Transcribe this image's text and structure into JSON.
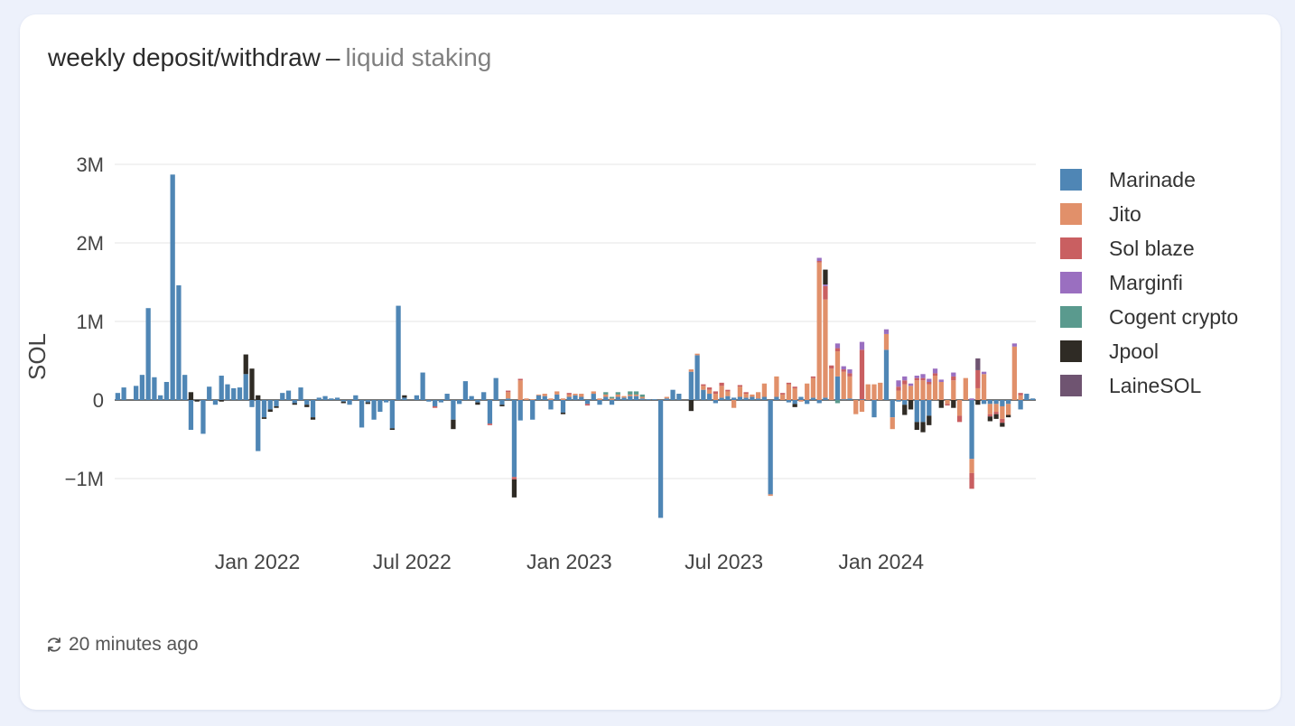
{
  "card": {
    "title": "weekly deposit/withdraw",
    "separator": "–",
    "subtitle": "liquid staking",
    "updated": "20 minutes ago"
  },
  "icons": {
    "refresh": "refresh-icon"
  },
  "chart_data": {
    "type": "bar",
    "stacked": true,
    "ylabel": "SOL",
    "ylim": [
      -1550000,
      3300000
    ],
    "yticks": [
      {
        "value": 3000000,
        "label": "3M"
      },
      {
        "value": 2000000,
        "label": "2M"
      },
      {
        "value": 1000000,
        "label": "1M"
      },
      {
        "value": 0,
        "label": "0"
      },
      {
        "value": -1000000,
        "label": "−1M"
      }
    ],
    "xlim": [
      "2021-07-18",
      "2024-06-30"
    ],
    "xticks": [
      {
        "date": "2022-01-01",
        "label": "Jan 2022"
      },
      {
        "date": "2022-07-01",
        "label": "Jul 2022"
      },
      {
        "date": "2023-01-01",
        "label": "Jan 2023"
      },
      {
        "date": "2023-07-01",
        "label": "Jul 2023"
      },
      {
        "date": "2024-01-01",
        "label": "Jan 2024"
      }
    ],
    "grid": true,
    "legend_position": "right",
    "series": [
      {
        "name": "Marinade",
        "color": "#4f86b5",
        "values": [
          90000,
          160000,
          0,
          180000,
          320000,
          1170000,
          290000,
          60000,
          230000,
          2870000,
          1460000,
          320000,
          -380000,
          0,
          -430000,
          170000,
          -60000,
          310000,
          200000,
          150000,
          160000,
          330000,
          -90000,
          -650000,
          -220000,
          -120000,
          -80000,
          90000,
          120000,
          -40000,
          160000,
          -60000,
          -220000,
          30000,
          50000,
          20000,
          30000,
          -20000,
          -60000,
          60000,
          -350000,
          -30000,
          -250000,
          -150000,
          -30000,
          -360000,
          1200000,
          30000,
          0,
          60000,
          350000,
          -20000,
          -80000,
          -30000,
          80000,
          -250000,
          -50000,
          240000,
          50000,
          -30000,
          100000,
          -300000,
          280000,
          -60000,
          20000,
          -980000,
          -260000,
          0,
          -250000,
          60000,
          50000,
          -120000,
          70000,
          -160000,
          40000,
          60000,
          40000,
          -50000,
          80000,
          -60000,
          40000,
          -60000,
          40000,
          30000,
          50000,
          50000,
          20000,
          10000,
          10000,
          -1500000,
          20000,
          130000,
          80000,
          0,
          360000,
          570000,
          130000,
          80000,
          -40000,
          30000,
          50000,
          30000,
          40000,
          30000,
          40000,
          20000,
          40000,
          -1200000,
          40000,
          0,
          -30000,
          -50000,
          40000,
          -50000,
          30000,
          -40000,
          30000,
          0,
          300000,
          10000,
          20000,
          0,
          10000,
          0,
          -220000,
          0,
          640000,
          -220000,
          -20000,
          -60000,
          0,
          -280000,
          -280000,
          -200000,
          0,
          0,
          0,
          0,
          0,
          0,
          -750000,
          0,
          -50000,
          -50000,
          -50000,
          -80000,
          -50000,
          0,
          -120000,
          80000,
          20000
        ]
      },
      {
        "name": "Jito",
        "color": "#e1906a",
        "values": [
          0,
          0,
          0,
          0,
          0,
          0,
          0,
          0,
          0,
          0,
          0,
          0,
          0,
          0,
          0,
          0,
          0,
          0,
          0,
          0,
          0,
          0,
          0,
          0,
          0,
          0,
          0,
          0,
          0,
          0,
          0,
          0,
          0,
          0,
          0,
          0,
          0,
          0,
          0,
          0,
          0,
          0,
          0,
          0,
          0,
          0,
          0,
          0,
          0,
          0,
          0,
          0,
          0,
          0,
          0,
          0,
          0,
          0,
          0,
          0,
          0,
          0,
          0,
          0,
          80000,
          0,
          250000,
          20000,
          10000,
          10000,
          30000,
          20000,
          40000,
          20000,
          30000,
          20000,
          40000,
          0,
          30000,
          20000,
          30000,
          20000,
          30000,
          20000,
          20000,
          20000,
          20000,
          0,
          0,
          0,
          20000,
          0,
          0,
          0,
          30000,
          20000,
          50000,
          50000,
          80000,
          150000,
          60000,
          -100000,
          130000,
          50000,
          30000,
          80000,
          170000,
          -20000,
          260000,
          70000,
          200000,
          150000,
          -20000,
          210000,
          250000,
          1750000,
          1250000,
          400000,
          320000,
          350000,
          280000,
          -180000,
          -150000,
          200000,
          200000,
          220000,
          200000,
          -150000,
          120000,
          200000,
          180000,
          250000,
          250000,
          200000,
          310000,
          230000,
          -50000,
          250000,
          -200000,
          280000,
          -180000,
          150000,
          330000,
          -130000,
          -100000,
          -160000,
          -140000,
          680000,
          60000
        ]
      },
      {
        "name": "Sol blaze",
        "color": "#c95f61",
        "values": [
          0,
          0,
          0,
          0,
          0,
          0,
          0,
          0,
          0,
          0,
          0,
          0,
          0,
          0,
          0,
          0,
          0,
          0,
          0,
          0,
          0,
          0,
          0,
          0,
          0,
          0,
          0,
          0,
          0,
          0,
          0,
          0,
          0,
          0,
          0,
          0,
          0,
          0,
          0,
          0,
          0,
          0,
          0,
          0,
          0,
          0,
          0,
          0,
          0,
          0,
          0,
          0,
          -20000,
          0,
          0,
          0,
          0,
          0,
          0,
          0,
          0,
          -20000,
          0,
          0,
          20000,
          -30000,
          20000,
          0,
          0,
          0,
          0,
          0,
          0,
          0,
          20000,
          0,
          0,
          -20000,
          0,
          0,
          0,
          0,
          0,
          0,
          0,
          0,
          0,
          0,
          0,
          0,
          0,
          0,
          0,
          0,
          0,
          0,
          20000,
          30000,
          30000,
          40000,
          20000,
          0,
          20000,
          20000,
          0,
          0,
          0,
          0,
          0,
          20000,
          20000,
          20000,
          0,
          0,
          20000,
          20000,
          170000,
          40000,
          40000,
          30000,
          40000,
          0,
          630000,
          0,
          0,
          0,
          0,
          0,
          50000,
          50000,
          0,
          30000,
          30000,
          30000,
          30000,
          0,
          -20000,
          50000,
          -80000,
          0,
          -200000,
          230000,
          0,
          -30000,
          -30000,
          -50000,
          0,
          0,
          30000
        ]
      },
      {
        "name": "Marginfi",
        "color": "#9a6fc0",
        "values": [
          0,
          0,
          0,
          0,
          0,
          0,
          0,
          0,
          0,
          0,
          0,
          0,
          0,
          0,
          0,
          0,
          0,
          0,
          0,
          0,
          0,
          0,
          0,
          0,
          0,
          0,
          0,
          0,
          0,
          0,
          0,
          0,
          0,
          0,
          0,
          0,
          0,
          0,
          0,
          0,
          0,
          0,
          0,
          0,
          0,
          0,
          0,
          0,
          0,
          0,
          0,
          0,
          0,
          0,
          0,
          0,
          0,
          0,
          0,
          0,
          0,
          0,
          0,
          0,
          0,
          0,
          0,
          0,
          0,
          0,
          0,
          0,
          0,
          0,
          0,
          0,
          0,
          0,
          0,
          0,
          0,
          0,
          0,
          0,
          0,
          0,
          0,
          0,
          0,
          0,
          0,
          0,
          0,
          0,
          0,
          0,
          0,
          0,
          0,
          0,
          0,
          0,
          0,
          0,
          0,
          0,
          0,
          0,
          0,
          0,
          0,
          0,
          0,
          0,
          0,
          40000,
          20000,
          0,
          60000,
          40000,
          50000,
          0,
          100000,
          0,
          0,
          0,
          60000,
          0,
          80000,
          50000,
          30000,
          30000,
          50000,
          40000,
          60000,
          30000,
          0,
          50000,
          0,
          0,
          20000,
          0,
          30000,
          0,
          0,
          0,
          0,
          40000,
          0
        ]
      },
      {
        "name": "Cogent crypto",
        "color": "#5a9a8e",
        "values": [
          0,
          0,
          0,
          0,
          0,
          0,
          0,
          0,
          0,
          0,
          0,
          0,
          0,
          0,
          0,
          0,
          0,
          0,
          0,
          0,
          0,
          0,
          0,
          0,
          0,
          0,
          0,
          0,
          0,
          0,
          0,
          0,
          0,
          0,
          0,
          0,
          0,
          0,
          0,
          0,
          0,
          0,
          0,
          0,
          0,
          0,
          0,
          0,
          0,
          0,
          0,
          0,
          0,
          0,
          0,
          0,
          0,
          0,
          0,
          0,
          0,
          0,
          0,
          0,
          0,
          0,
          0,
          0,
          0,
          0,
          0,
          0,
          0,
          0,
          0,
          0,
          0,
          0,
          0,
          0,
          30000,
          20000,
          30000,
          0,
          40000,
          40000,
          30000,
          0,
          0,
          0,
          0,
          0,
          0,
          0,
          0,
          0,
          0,
          0,
          0,
          0,
          0,
          0,
          0,
          0,
          0,
          0,
          0,
          0,
          0,
          0,
          0,
          0,
          0,
          0,
          0,
          0,
          0,
          0,
          -40000,
          0,
          0,
          0,
          0,
          0,
          0,
          0,
          0,
          0,
          0,
          0,
          0,
          0,
          0,
          0,
          0,
          0,
          0,
          0,
          0,
          0,
          0,
          0,
          0,
          0,
          0,
          0,
          0,
          0,
          0
        ]
      },
      {
        "name": "Jpool",
        "color": "#2f2b25",
        "values": [
          0,
          0,
          0,
          0,
          0,
          0,
          0,
          0,
          0,
          0,
          0,
          0,
          100000,
          -20000,
          0,
          0,
          0,
          -20000,
          0,
          0,
          0,
          250000,
          400000,
          60000,
          -20000,
          -30000,
          -20000,
          0,
          0,
          -20000,
          0,
          -30000,
          -30000,
          0,
          0,
          0,
          0,
          -20000,
          0,
          0,
          0,
          -20000,
          0,
          0,
          0,
          -20000,
          0,
          30000,
          0,
          0,
          0,
          0,
          0,
          0,
          0,
          -120000,
          0,
          0,
          0,
          -30000,
          0,
          0,
          0,
          -20000,
          0,
          -230000,
          0,
          0,
          0,
          0,
          0,
          0,
          0,
          -20000,
          0,
          0,
          0,
          0,
          0,
          0,
          0,
          0,
          0,
          0,
          0,
          0,
          0,
          0,
          0,
          0,
          0,
          0,
          0,
          0,
          -140000,
          0,
          0,
          0,
          0,
          0,
          0,
          0,
          0,
          0,
          0,
          0,
          0,
          0,
          0,
          0,
          0,
          -40000,
          0,
          0,
          0,
          0,
          190000,
          0,
          0,
          0,
          0,
          0,
          0,
          0,
          0,
          0,
          0,
          0,
          0,
          -130000,
          -120000,
          -100000,
          -130000,
          -120000,
          0,
          -100000,
          0,
          -100000,
          0,
          0,
          0,
          -60000,
          0,
          -60000,
          -60000,
          -50000,
          -30000,
          0,
          0
        ]
      },
      {
        "name": "LaineSOL",
        "color": "#6f5471",
        "values": [
          0,
          0,
          0,
          0,
          0,
          0,
          0,
          0,
          0,
          0,
          0,
          0,
          0,
          0,
          0,
          0,
          0,
          0,
          0,
          0,
          0,
          0,
          0,
          0,
          0,
          0,
          0,
          0,
          0,
          0,
          0,
          0,
          0,
          0,
          0,
          0,
          0,
          0,
          0,
          0,
          0,
          0,
          0,
          0,
          0,
          0,
          0,
          0,
          0,
          0,
          0,
          0,
          0,
          0,
          0,
          0,
          0,
          0,
          0,
          0,
          0,
          0,
          0,
          0,
          0,
          0,
          0,
          0,
          0,
          0,
          0,
          0,
          0,
          0,
          0,
          0,
          0,
          0,
          0,
          0,
          0,
          0,
          0,
          0,
          0,
          0,
          0,
          0,
          0,
          0,
          0,
          0,
          0,
          0,
          0,
          0,
          0,
          0,
          0,
          0,
          0,
          0,
          0,
          0,
          0,
          0,
          0,
          0,
          0,
          0,
          0,
          0,
          0,
          0,
          0,
          0,
          0,
          0,
          0,
          0,
          0,
          0,
          0,
          0,
          0,
          0,
          0,
          0,
          0,
          0,
          0,
          0,
          0,
          0,
          0,
          0,
          0,
          0,
          0,
          0,
          0,
          150000,
          0,
          0,
          0,
          0,
          0,
          0,
          0
        ]
      }
    ]
  }
}
